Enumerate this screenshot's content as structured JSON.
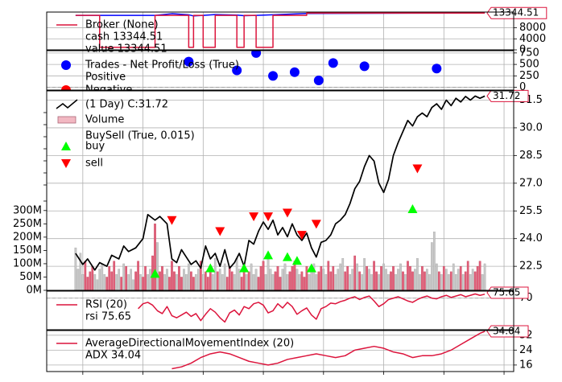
{
  "chart_data": [
    {
      "type": "line",
      "panel": "broker",
      "legend": [
        {
          "label": "Broker (None)",
          "color": "#dc143c"
        },
        {
          "label": "cash 13344.51",
          "color": "#dc143c"
        },
        {
          "label": "value 13344.51",
          "color": "#0000ff"
        }
      ],
      "last_value_tag": "13344.51",
      "ytick_labels": [
        "0",
        "4000",
        "8000"
      ],
      "yticks": [
        0,
        4000,
        8000
      ],
      "ylim": [
        0,
        13700
      ],
      "series": [
        {
          "name": "cash",
          "color": "#dc143c",
          "x": [
            0,
            10,
            10,
            33,
            33,
            47,
            47,
            49,
            49,
            53,
            53,
            58,
            58,
            67,
            67,
            70,
            70,
            75,
            75,
            82,
            82,
            96,
            96,
            170
          ],
          "values": [
            12500,
            12500,
            900,
            900,
            12500,
            12500,
            900,
            900,
            12500,
            12500,
            900,
            900,
            12500,
            12500,
            900,
            900,
            12500,
            12500,
            900,
            900,
            12500,
            12500,
            13344.51,
            13344.51
          ]
        },
        {
          "name": "value",
          "color": "#0000ff",
          "x": [
            0,
            10,
            33,
            40,
            47,
            49,
            53,
            58,
            67,
            70,
            75,
            82,
            96,
            170
          ],
          "values": [
            12500,
            12500,
            12500,
            13100,
            12700,
            12300,
            12500,
            12800,
            12600,
            12400,
            12500,
            12700,
            13200,
            13344.51
          ]
        }
      ]
    },
    {
      "type": "scatter",
      "panel": "trades",
      "legend": [
        {
          "label": "Trades - Net Profit/Loss (True)",
          "color": "#0000ff"
        },
        {
          "label": "Positive",
          "color": "#0000ff"
        },
        {
          "label": "Negative",
          "color": "#ff0000"
        }
      ],
      "ytick_labels": [
        "0",
        "250",
        "500",
        "750"
      ],
      "yticks": [
        0,
        250,
        500,
        750
      ],
      "ylim": [
        -60,
        800
      ],
      "positive": {
        "x": [
          47,
          67,
          75,
          82,
          91,
          101,
          107,
          120,
          150
        ],
        "values": [
          560,
          370,
          750,
          250,
          330,
          150,
          530,
          460,
          410
        ]
      },
      "negative": {
        "x": [],
        "values": []
      }
    },
    {
      "type": "line",
      "panel": "price",
      "legend": [
        {
          "label": "(1 Day) C:31.72",
          "color": "#000000"
        },
        {
          "label": "Volume",
          "color": "#f2b8c2"
        },
        {
          "label": "BuySell (True, 0.015)",
          "color": "#ffffff"
        },
        {
          "label": "buy",
          "color": "#00ff00"
        },
        {
          "label": "sell",
          "color": "#ff0000"
        }
      ],
      "last_value_tag": "31.72",
      "ytick_labels": [
        "22.5",
        "24.0",
        "25.5",
        "27.0",
        "28.5",
        "30.0",
        "31.5"
      ],
      "yticks": [
        22.5,
        24.0,
        25.5,
        27.0,
        28.5,
        30.0,
        31.5
      ],
      "ylim": [
        21.2,
        32.0
      ],
      "volume_tick_labels": [
        "0M",
        "50M",
        "100M",
        "150M",
        "200M",
        "250M",
        "300M"
      ],
      "volume_ticks": [
        0,
        50,
        100,
        150,
        200,
        250,
        300
      ],
      "volume_max": 750,
      "close": {
        "x": [
          0,
          3,
          5,
          8,
          10,
          13,
          15,
          18,
          20,
          22,
          25,
          28,
          30,
          33,
          35,
          38,
          40,
          42,
          44,
          46,
          48,
          50,
          52,
          54,
          56,
          58,
          60,
          62,
          64,
          66,
          68,
          70,
          72,
          74,
          76,
          78,
          80,
          82,
          84,
          86,
          88,
          90,
          92,
          94,
          96,
          98,
          100,
          102,
          104,
          106,
          108,
          110,
          112,
          114,
          116,
          118,
          120,
          122,
          124,
          126,
          128,
          130,
          132,
          134,
          136,
          138,
          140,
          142,
          144,
          146,
          148,
          150,
          152,
          154,
          156,
          158,
          160,
          162,
          164,
          166,
          168,
          170
        ],
        "values": [
          23.2,
          22.6,
          22.9,
          22.3,
          22.7,
          22.5,
          23.1,
          22.9,
          23.6,
          23.3,
          23.5,
          24.0,
          25.3,
          25.0,
          25.2,
          24.8,
          22.9,
          22.7,
          23.4,
          23.0,
          22.6,
          22.8,
          22.4,
          23.6,
          22.9,
          23.2,
          22.5,
          23.4,
          22.4,
          22.7,
          23.2,
          22.5,
          23.9,
          23.7,
          24.4,
          24.9,
          24.5,
          25.0,
          24.2,
          24.6,
          24.1,
          24.8,
          24.2,
          23.9,
          24.3,
          23.5,
          23.0,
          23.8,
          23.9,
          24.2,
          24.8,
          25.0,
          25.3,
          25.9,
          26.7,
          27.1,
          27.9,
          28.5,
          28.2,
          27.0,
          26.5,
          27.2,
          28.5,
          29.2,
          29.8,
          30.4,
          30.1,
          30.6,
          30.8,
          30.6,
          31.1,
          31.3,
          31.0,
          31.5,
          31.2,
          31.6,
          31.4,
          31.7,
          31.5,
          31.72,
          31.6,
          31.72
        ]
      },
      "buy": {
        "x": [
          33,
          56,
          70,
          80,
          88,
          92,
          98,
          140
        ],
        "values": [
          22.1,
          22.4,
          22.4,
          23.1,
          23.0,
          22.8,
          22.4,
          25.6
        ]
      },
      "sell": {
        "x": [
          40,
          60,
          74,
          80,
          88,
          94,
          100,
          142
        ],
        "values": [
          25.0,
          24.4,
          25.2,
          25.2,
          25.4,
          24.2,
          24.8,
          27.8
        ]
      },
      "volume": {
        "x": [
          0,
          1,
          2,
          3,
          4,
          5,
          6,
          7,
          8,
          9,
          10,
          11,
          12,
          13,
          14,
          15,
          16,
          17,
          18,
          19,
          20,
          21,
          22,
          23,
          24,
          25,
          26,
          27,
          28,
          29,
          30,
          31,
          32,
          33,
          34,
          35,
          36,
          37,
          38,
          39,
          40,
          41,
          42,
          43,
          44,
          45,
          46,
          47,
          48,
          49,
          50,
          51,
          52,
          53,
          54,
          55,
          56,
          57,
          58,
          59,
          60,
          61,
          62,
          63,
          64,
          65,
          66,
          67,
          68,
          69,
          70,
          71,
          72,
          73,
          74,
          75,
          76,
          77,
          78,
          79,
          80,
          81,
          82,
          83,
          84,
          85,
          86,
          87,
          88,
          89,
          90,
          91,
          92,
          93,
          94,
          95,
          96,
          97,
          98,
          99,
          100,
          101,
          102,
          103,
          104,
          105,
          106,
          107,
          108,
          109,
          110,
          111,
          112,
          113,
          114,
          115,
          116,
          117,
          118,
          119,
          120,
          121,
          122,
          123,
          124,
          125,
          126,
          127,
          128,
          129,
          130,
          131,
          132,
          133,
          134,
          135,
          136,
          137,
          138,
          139,
          140,
          141,
          142,
          143,
          144,
          145,
          146,
          147,
          148,
          149,
          150,
          151,
          152,
          153,
          154,
          155,
          156,
          157,
          158,
          159,
          160,
          161,
          162,
          163,
          164,
          165,
          166,
          167,
          168,
          169,
          170
        ],
        "values": [
          160,
          80,
          140,
          60,
          110,
          50,
          70,
          90,
          60,
          40,
          80,
          100,
          60,
          50,
          90,
          70,
          110,
          60,
          80,
          50,
          100,
          90,
          60,
          80,
          40,
          70,
          110,
          60,
          50,
          90,
          60,
          80,
          130,
          250,
          180,
          70,
          90,
          60,
          80,
          50,
          110,
          70,
          60,
          90,
          50,
          80,
          60,
          100,
          70,
          50,
          60,
          80,
          110,
          60,
          70,
          50,
          90,
          60,
          120,
          70,
          80,
          60,
          100,
          50,
          90,
          70,
          60,
          120,
          80,
          50,
          90,
          60,
          70,
          100,
          60,
          80,
          50,
          90,
          110,
          60,
          120,
          80,
          60,
          70,
          90,
          50,
          80,
          100,
          60,
          70,
          90,
          110,
          80,
          60,
          70,
          50,
          90,
          60,
          80,
          100,
          60,
          70,
          90,
          80,
          60,
          110,
          70,
          90,
          60,
          80,
          100,
          120,
          70,
          90,
          60,
          80,
          130,
          100,
          70,
          60,
          120,
          90,
          80,
          60,
          110,
          70,
          60,
          90,
          100,
          80,
          60,
          70,
          90,
          60,
          80,
          100,
          70,
          60,
          110,
          90,
          70,
          80,
          120,
          60,
          90,
          70,
          80,
          60,
          180,
          220,
          100,
          70,
          60,
          90,
          80,
          60,
          70,
          100,
          60,
          80,
          90,
          60,
          70,
          110,
          60,
          80,
          70,
          90,
          110,
          60,
          100
        ]
      }
    },
    {
      "type": "line",
      "panel": "rsi",
      "legend": [
        {
          "label": "RSI (20)",
          "color": "#dc143c"
        },
        {
          "label": "rsi 75.65",
          "color": "#dc143c"
        }
      ],
      "last_value_tag": "75.65",
      "ytick_labels": [
        "70"
      ],
      "yticks": [
        70
      ],
      "ylim": [
        25,
        80
      ],
      "series": [
        {
          "name": "rsi",
          "color": "#dc143c",
          "x": [
            26,
            28,
            30,
            32,
            34,
            36,
            38,
            40,
            42,
            44,
            46,
            48,
            50,
            52,
            54,
            56,
            58,
            60,
            62,
            64,
            66,
            68,
            70,
            72,
            74,
            76,
            78,
            80,
            82,
            84,
            86,
            88,
            90,
            92,
            94,
            96,
            98,
            100,
            102,
            104,
            106,
            108,
            110,
            112,
            114,
            116,
            118,
            120,
            122,
            124,
            126,
            128,
            130,
            132,
            134,
            136,
            138,
            140,
            142,
            144,
            146,
            148,
            150,
            152,
            154,
            156,
            158,
            160,
            162,
            164,
            166,
            168,
            170
          ],
          "values": [
            55,
            62,
            64,
            60,
            52,
            48,
            58,
            45,
            42,
            46,
            50,
            44,
            48,
            38,
            47,
            55,
            50,
            42,
            36,
            49,
            53,
            46,
            58,
            55,
            62,
            64,
            60,
            49,
            52,
            62,
            56,
            64,
            58,
            47,
            52,
            56,
            46,
            40,
            55,
            58,
            63,
            62,
            65,
            67,
            70,
            72,
            68,
            71,
            73,
            66,
            58,
            62,
            68,
            70,
            72,
            69,
            66,
            64,
            68,
            71,
            73,
            70,
            69,
            72,
            74,
            71,
            73,
            75,
            72,
            74,
            76,
            74,
            75.65
          ]
        }
      ]
    },
    {
      "type": "line",
      "panel": "adx",
      "legend": [
        {
          "label": "AverageDirectionalMovementIndex (20)",
          "color": "#dc143c"
        },
        {
          "label": "ADX 34.04",
          "color": "#dc143c"
        }
      ],
      "last_value_tag": "34.04",
      "ytick_labels": [
        "16",
        "24",
        "32"
      ],
      "yticks": [
        16,
        24,
        32
      ],
      "ylim": [
        12.5,
        34.5
      ],
      "series": [
        {
          "name": "adx",
          "color": "#dc143c",
          "x": [
            40,
            44,
            48,
            52,
            56,
            60,
            64,
            68,
            72,
            76,
            80,
            84,
            88,
            92,
            96,
            100,
            104,
            108,
            112,
            116,
            120,
            124,
            128,
            132,
            136,
            140,
            144,
            148,
            152,
            156,
            160,
            164,
            168,
            170
          ],
          "values": [
            14,
            15,
            17,
            20,
            22,
            23,
            22,
            20,
            18,
            17,
            16,
            17,
            19,
            20,
            21,
            22,
            21,
            20,
            21,
            24,
            25,
            26,
            25,
            23,
            22,
            20,
            21,
            21,
            22,
            24,
            27,
            30,
            33,
            34.04
          ]
        }
      ]
    }
  ]
}
